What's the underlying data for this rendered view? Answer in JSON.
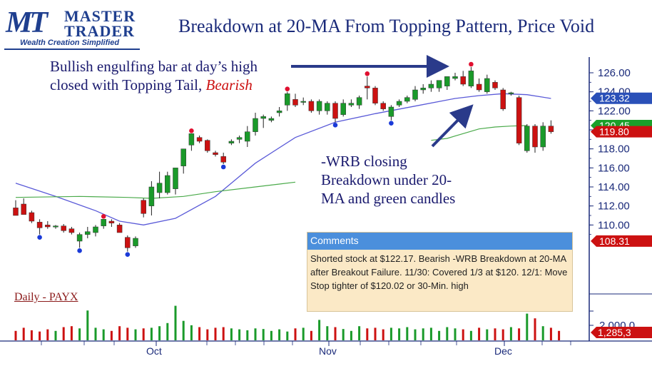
{
  "logo": {
    "mark": "MT",
    "line1": "MASTER",
    "line2": "TRADER",
    "tagline": "Wealth Creation Simplified"
  },
  "title": "Breakdown at 20-MA From Topping Pattern, Price Void",
  "annotation1": {
    "line1": "Bullish engulfing bar at day’s high",
    "line2a": "closed with Topping Tail, ",
    "line2b": "Bearish"
  },
  "annotation2": {
    "line1": "-WRB closing",
    "line2": "Breakdown under 20-",
    "line3": "MA and green candles"
  },
  "symbol_label": "Daily - PAYX",
  "comments": {
    "header": "Comments",
    "body": "Shorted stock at $122.17. Bearish -WRB Breakdown at 20-MA after Breakout Failure.   11/30:  Covered 1/3 at $120.     12/1:  Move Stop tighter of $120.02 or 30-Min. high"
  },
  "colors": {
    "up": "#1a9a2a",
    "down": "#cc1111",
    "ma20": "#5a5ad8",
    "ma50": "#4aaa4a",
    "tag_blue": "#2a50b8",
    "tag_green": "#1aa02a",
    "tag_red": "#cc1111",
    "axis": "#1a2a7a"
  },
  "chart_data": {
    "type": "candlestick",
    "y_ticks": [
      "126.00",
      "124.00",
      "122.00",
      "120.00",
      "118.00",
      "116.00",
      "114.00",
      "112.00",
      "110.00"
    ],
    "ylim": [
      106.8,
      127.1
    ],
    "x_labels": [
      "Oct",
      "Nov",
      "Dec"
    ],
    "price_tags": [
      {
        "label": "123.32",
        "value": 123.32,
        "color": "blue"
      },
      {
        "label": "120.45",
        "value": 120.45,
        "color": "green"
      },
      {
        "label": "119.80",
        "value": 119.8,
        "color": "red"
      },
      {
        "label": "108.31",
        "value": 108.31,
        "color": "red"
      }
    ],
    "volume_tick": "2,000,0",
    "volume_tag": "1,285,3",
    "candles": [
      {
        "o": 111.8,
        "h": 112.6,
        "l": 111.0,
        "c": 111.0
      },
      {
        "o": 112.2,
        "h": 112.8,
        "l": 111.1,
        "c": 111.1
      },
      {
        "o": 111.3,
        "h": 111.5,
        "l": 110.2,
        "c": 110.4
      },
      {
        "o": 110.3,
        "h": 110.6,
        "l": 109.0,
        "c": 109.7,
        "dot": "blue_low"
      },
      {
        "o": 110.0,
        "h": 110.4,
        "l": 109.6,
        "c": 109.8
      },
      {
        "o": 109.8,
        "h": 110.0,
        "l": 109.6,
        "c": 109.9
      },
      {
        "o": 109.9,
        "h": 110.1,
        "l": 109.2,
        "c": 109.4
      },
      {
        "o": 109.6,
        "h": 109.8,
        "l": 109.0,
        "c": 109.2
      },
      {
        "o": 108.3,
        "h": 109.2,
        "l": 107.6,
        "c": 109.0,
        "dot": "blue_low"
      },
      {
        "o": 109.0,
        "h": 109.8,
        "l": 108.6,
        "c": 109.3
      },
      {
        "o": 109.2,
        "h": 110.0,
        "l": 108.8,
        "c": 109.8
      },
      {
        "o": 109.9,
        "h": 110.6,
        "l": 109.6,
        "c": 110.6,
        "dot": "red_high"
      },
      {
        "o": 110.4,
        "h": 110.6,
        "l": 109.8,
        "c": 110.2
      },
      {
        "o": 110.0,
        "h": 110.2,
        "l": 109.2,
        "c": 109.2
      },
      {
        "o": 108.7,
        "h": 108.9,
        "l": 107.2,
        "c": 107.6,
        "dot": "blue_low"
      },
      {
        "o": 107.8,
        "h": 108.8,
        "l": 107.6,
        "c": 108.6
      },
      {
        "o": 112.6,
        "h": 112.8,
        "l": 110.8,
        "c": 111.2
      },
      {
        "o": 112.0,
        "h": 114.6,
        "l": 111.0,
        "c": 114.0
      },
      {
        "o": 113.4,
        "h": 115.6,
        "l": 112.8,
        "c": 114.4
      },
      {
        "o": 113.4,
        "h": 115.6,
        "l": 113.2,
        "c": 115.2
      },
      {
        "o": 113.8,
        "h": 116.0,
        "l": 113.2,
        "c": 116.0
      },
      {
        "o": 116.2,
        "h": 118.0,
        "l": 115.4,
        "c": 118.0
      },
      {
        "o": 118.4,
        "h": 119.6,
        "l": 117.8,
        "c": 119.6,
        "dot": "red_high"
      },
      {
        "o": 119.2,
        "h": 119.4,
        "l": 118.6,
        "c": 118.8
      },
      {
        "o": 118.9,
        "h": 119.0,
        "l": 117.6,
        "c": 117.8
      },
      {
        "o": 117.6,
        "h": 117.8,
        "l": 117.2,
        "c": 117.4
      },
      {
        "o": 117.2,
        "h": 117.6,
        "l": 116.4,
        "c": 116.6,
        "dot": "blue_low"
      },
      {
        "o": 118.6,
        "h": 119.0,
        "l": 118.4,
        "c": 118.8
      },
      {
        "o": 119.0,
        "h": 119.4,
        "l": 118.6,
        "c": 119.2
      },
      {
        "o": 118.8,
        "h": 120.4,
        "l": 118.2,
        "c": 119.8
      },
      {
        "o": 119.8,
        "h": 121.8,
        "l": 119.4,
        "c": 121.2
      },
      {
        "o": 121.2,
        "h": 121.6,
        "l": 120.2,
        "c": 121.4
      },
      {
        "o": 121.0,
        "h": 121.4,
        "l": 120.8,
        "c": 121.2
      },
      {
        "o": 121.8,
        "h": 122.4,
        "l": 121.4,
        "c": 122.0
      },
      {
        "o": 122.6,
        "h": 124.0,
        "l": 122.0,
        "c": 123.8,
        "dot": "red_high"
      },
      {
        "o": 123.2,
        "h": 123.8,
        "l": 122.4,
        "c": 122.6
      },
      {
        "o": 123.0,
        "h": 123.4,
        "l": 122.6,
        "c": 123.0
      },
      {
        "o": 123.0,
        "h": 123.2,
        "l": 121.8,
        "c": 122.0
      },
      {
        "o": 122.0,
        "h": 123.2,
        "l": 121.6,
        "c": 123.0
      },
      {
        "o": 122.0,
        "h": 123.0,
        "l": 121.6,
        "c": 122.8
      },
      {
        "o": 122.8,
        "h": 123.0,
        "l": 120.8,
        "c": 121.2,
        "dot": "blue_low"
      },
      {
        "o": 121.6,
        "h": 123.2,
        "l": 121.4,
        "c": 122.8
      },
      {
        "o": 122.6,
        "h": 123.2,
        "l": 122.4,
        "c": 122.8
      },
      {
        "o": 122.6,
        "h": 123.6,
        "l": 122.2,
        "c": 123.4
      },
      {
        "o": 124.6,
        "h": 125.6,
        "l": 123.2,
        "c": 124.4,
        "dot": "red_high"
      },
      {
        "o": 124.4,
        "h": 124.6,
        "l": 122.6,
        "c": 122.8
      },
      {
        "o": 122.8,
        "h": 123.0,
        "l": 122.0,
        "c": 122.2
      },
      {
        "o": 121.4,
        "h": 122.6,
        "l": 121.0,
        "c": 122.4,
        "dot": "blue_low"
      },
      {
        "o": 122.6,
        "h": 123.2,
        "l": 122.4,
        "c": 123.0
      },
      {
        "o": 123.0,
        "h": 123.6,
        "l": 122.8,
        "c": 123.4
      },
      {
        "o": 123.2,
        "h": 124.6,
        "l": 123.0,
        "c": 124.2
      },
      {
        "o": 124.2,
        "h": 124.8,
        "l": 123.8,
        "c": 124.4
      },
      {
        "o": 124.4,
        "h": 125.2,
        "l": 124.0,
        "c": 124.8
      },
      {
        "o": 124.4,
        "h": 125.2,
        "l": 124.0,
        "c": 125.2
      },
      {
        "o": 124.6,
        "h": 125.6,
        "l": 124.2,
        "c": 125.6
      },
      {
        "o": 125.4,
        "h": 126.0,
        "l": 125.2,
        "c": 125.6
      },
      {
        "o": 125.6,
        "h": 126.2,
        "l": 124.6,
        "c": 124.8
      },
      {
        "o": 124.6,
        "h": 126.6,
        "l": 124.4,
        "c": 126.2,
        "dot": "red_high"
      },
      {
        "o": 124.8,
        "h": 125.4,
        "l": 124.0,
        "c": 124.2
      },
      {
        "o": 124.0,
        "h": 125.8,
        "l": 123.8,
        "c": 125.4
      },
      {
        "o": 125.0,
        "h": 125.2,
        "l": 124.2,
        "c": 124.4
      },
      {
        "o": 124.2,
        "h": 124.4,
        "l": 122.0,
        "c": 122.2
      },
      {
        "o": 123.8,
        "h": 124.0,
        "l": 123.6,
        "c": 123.9
      },
      {
        "o": 123.4,
        "h": 123.6,
        "l": 118.4,
        "c": 118.6
      },
      {
        "o": 117.8,
        "h": 120.6,
        "l": 117.6,
        "c": 120.4
      },
      {
        "o": 120.4,
        "h": 120.6,
        "l": 117.6,
        "c": 118.2
      },
      {
        "o": 118.2,
        "h": 120.8,
        "l": 117.8,
        "c": 120.4
      },
      {
        "o": 120.4,
        "h": 121.0,
        "l": 119.6,
        "c": 119.8
      }
    ],
    "ma20": [
      [
        0,
        114.4
      ],
      [
        5,
        113.0
      ],
      [
        10,
        111.5
      ],
      [
        13,
        110.4
      ],
      [
        16,
        110.0
      ],
      [
        20,
        110.7
      ],
      [
        25,
        113.0
      ],
      [
        30,
        116.5
      ],
      [
        35,
        119.2
      ],
      [
        40,
        120.8
      ],
      [
        45,
        121.7
      ],
      [
        50,
        122.5
      ],
      [
        55,
        123.3
      ],
      [
        58,
        123.6
      ],
      [
        61,
        123.8
      ],
      [
        64,
        123.7
      ],
      [
        67,
        123.3
      ]
    ],
    "ma50_a": [
      [
        0,
        112.9
      ],
      [
        8,
        113.0
      ],
      [
        14,
        112.9
      ],
      [
        17,
        112.8
      ],
      [
        21,
        113.0
      ],
      [
        25,
        113.5
      ],
      [
        30,
        114.0
      ],
      [
        33,
        114.3
      ],
      [
        35,
        114.5
      ]
    ],
    "ma50_b": [
      [
        52,
        118.9
      ],
      [
        54,
        119.1
      ],
      [
        56,
        119.6
      ],
      [
        58,
        120.1
      ],
      [
        60,
        120.3
      ],
      [
        62,
        120.4
      ],
      [
        64,
        120.45
      ]
    ],
    "volume": [
      0.3,
      0.4,
      0.32,
      0.28,
      0.35,
      0.3,
      0.42,
      0.45,
      0.38,
      0.95,
      0.4,
      0.35,
      0.3,
      0.45,
      0.4,
      0.35,
      0.38,
      0.4,
      0.45,
      0.55,
      1.1,
      0.62,
      0.48,
      0.42,
      0.35,
      0.4,
      0.42,
      0.38,
      0.35,
      0.32,
      0.38,
      0.36,
      0.3,
      0.35,
      0.28,
      0.38,
      0.4,
      0.3,
      0.65,
      0.45,
      0.42,
      0.36,
      0.3,
      0.45,
      0.38,
      0.4,
      0.35,
      0.4,
      0.38,
      0.42,
      0.35,
      0.38,
      0.4,
      0.3,
      0.42,
      0.38,
      0.35,
      0.3,
      0.4,
      0.35,
      0.38,
      0.35,
      0.42,
      0.38,
      0.85,
      0.7,
      0.45,
      0.4,
      0.3
    ]
  }
}
